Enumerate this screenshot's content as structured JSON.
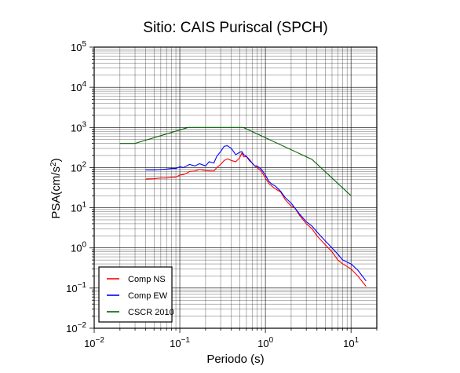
{
  "chart_data": {
    "type": "line",
    "title": "Sitio: CAIS Puriscal (SPCH)",
    "xlabel": "Periodo (s)",
    "ylabel_main": "PSA(cm/s",
    "ylabel_sup": "2",
    "ylabel_close": ")",
    "xscale": "log",
    "yscale": "log",
    "xlim": [
      0.01,
      20
    ],
    "ylim": [
      0.01,
      100000
    ],
    "grid": true,
    "legend_position": "bottom-left",
    "x_ticks": [
      {
        "base": "10",
        "exp": "−2"
      },
      {
        "base": "10",
        "exp": "−1"
      },
      {
        "base": "10",
        "exp": "0"
      },
      {
        "base": "10",
        "exp": "1"
      }
    ],
    "y_ticks": [
      {
        "base": "10",
        "exp": "−2"
      },
      {
        "base": "10",
        "exp": "−1"
      },
      {
        "base": "10",
        "exp": "0"
      },
      {
        "base": "10",
        "exp": "1"
      },
      {
        "base": "10",
        "exp": "2"
      },
      {
        "base": "10",
        "exp": "3"
      },
      {
        "base": "10",
        "exp": "4"
      },
      {
        "base": "10",
        "exp": "5"
      }
    ],
    "series": [
      {
        "name": "Comp NS",
        "color": "#ff0000",
        "x": [
          0.04,
          0.05,
          0.06,
          0.07,
          0.08,
          0.09,
          0.1,
          0.11,
          0.12,
          0.13,
          0.15,
          0.17,
          0.2,
          0.22,
          0.25,
          0.27,
          0.3,
          0.33,
          0.36,
          0.4,
          0.45,
          0.5,
          0.53,
          0.56,
          0.6,
          0.65,
          0.7,
          0.75,
          0.8,
          0.9,
          1.0,
          1.1,
          1.2,
          1.3,
          1.4,
          1.5,
          1.7,
          2.0,
          2.2,
          2.5,
          3.0,
          3.5,
          4.0,
          5.0,
          6.0,
          7.0,
          8.0,
          10.0,
          12.0,
          15.0
        ],
        "y": [
          52,
          53,
          55,
          55,
          57,
          58,
          65,
          67,
          72,
          80,
          82,
          90,
          84,
          83,
          82,
          100,
          120,
          150,
          165,
          150,
          140,
          175,
          230,
          185,
          190,
          160,
          130,
          110,
          100,
          80,
          55,
          40,
          34,
          30,
          27,
          25,
          16,
          11,
          10,
          6.5,
          4.0,
          3.0,
          2.0,
          1.2,
          0.8,
          0.5,
          0.4,
          0.3,
          0.2,
          0.11
        ]
      },
      {
        "name": "Comp EW",
        "color": "#0000ff",
        "x": [
          0.04,
          0.05,
          0.06,
          0.07,
          0.08,
          0.09,
          0.1,
          0.11,
          0.12,
          0.13,
          0.15,
          0.17,
          0.2,
          0.22,
          0.25,
          0.27,
          0.3,
          0.33,
          0.36,
          0.4,
          0.45,
          0.5,
          0.53,
          0.56,
          0.6,
          0.65,
          0.7,
          0.75,
          0.8,
          0.9,
          1.0,
          1.1,
          1.2,
          1.3,
          1.4,
          1.5,
          1.7,
          2.0,
          2.2,
          2.5,
          3.0,
          3.5,
          4.0,
          5.0,
          6.0,
          7.0,
          8.0,
          10.0,
          12.0,
          15.0
        ],
        "y": [
          88,
          88,
          90,
          92,
          95,
          95,
          105,
          100,
          110,
          120,
          110,
          125,
          110,
          140,
          130,
          190,
          250,
          340,
          350,
          300,
          210,
          240,
          250,
          210,
          190,
          150,
          130,
          110,
          110,
          90,
          65,
          45,
          38,
          35,
          30,
          26,
          18,
          13,
          10,
          7.0,
          4.5,
          3.5,
          2.5,
          1.5,
          1.0,
          0.7,
          0.5,
          0.4,
          0.28,
          0.15
        ]
      },
      {
        "name": "CSCR 2010",
        "color": "#006400",
        "x": [
          0.02,
          0.03,
          0.125,
          0.55,
          3.5,
          10.0
        ],
        "y": [
          400,
          400,
          1000,
          1000,
          160,
          20
        ]
      }
    ]
  }
}
